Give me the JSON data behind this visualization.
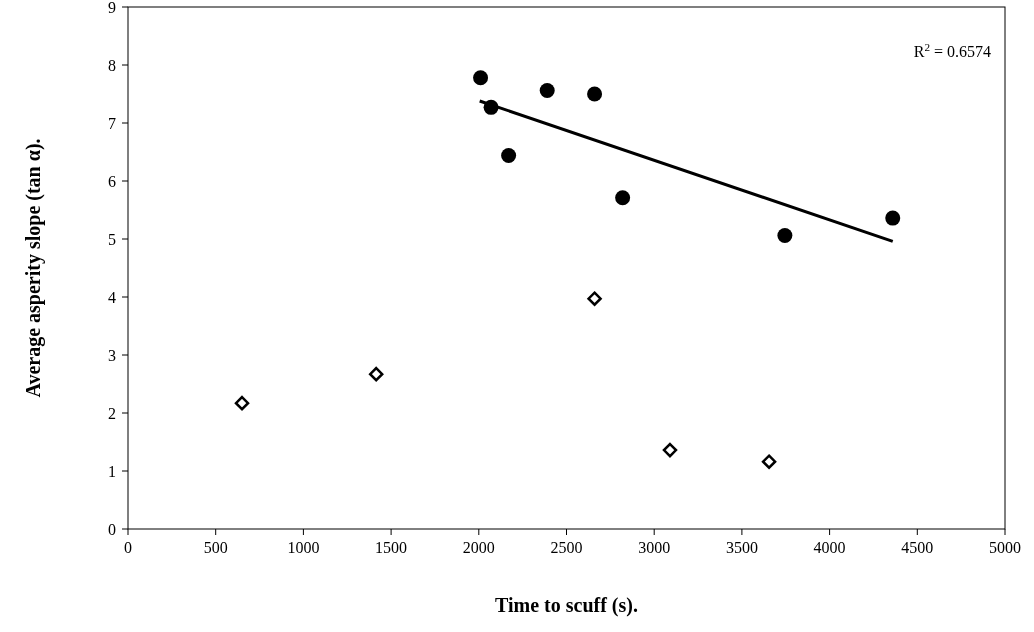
{
  "chart_data": {
    "type": "scatter",
    "xlabel": "Time to scuff (s).",
    "ylabel": "Average asperity slope (tan α).",
    "xlim": [
      0,
      5000
    ],
    "ylim": [
      0,
      9
    ],
    "xticks": [
      0,
      500,
      1000,
      1500,
      2000,
      2500,
      3000,
      3500,
      4000,
      4500,
      5000
    ],
    "yticks": [
      0,
      1,
      2,
      3,
      4,
      5,
      6,
      7,
      8,
      9
    ],
    "grid": false,
    "annotations": [
      "R$^{2}$ = 0.6574"
    ],
    "series": [
      {
        "marker": "circle",
        "color": "#000000",
        "x": [
          2010,
          2070,
          2170,
          2390,
          2660,
          2820,
          3745,
          4360
        ],
        "values": [
          7.78,
          7.27,
          6.44,
          7.56,
          7.5,
          5.71,
          5.06,
          5.36
        ]
      },
      {
        "marker": "diamond",
        "color": "#000000",
        "x": [
          650,
          1415,
          2660,
          3090,
          3655
        ],
        "values": [
          2.17,
          2.67,
          3.97,
          1.36,
          1.16
        ]
      },
      {
        "type": "line",
        "marker": "none",
        "line_style": "solid",
        "color": "#000000",
        "x": [
          2005,
          4360
        ],
        "values": [
          7.38,
          4.96
        ]
      }
    ]
  }
}
